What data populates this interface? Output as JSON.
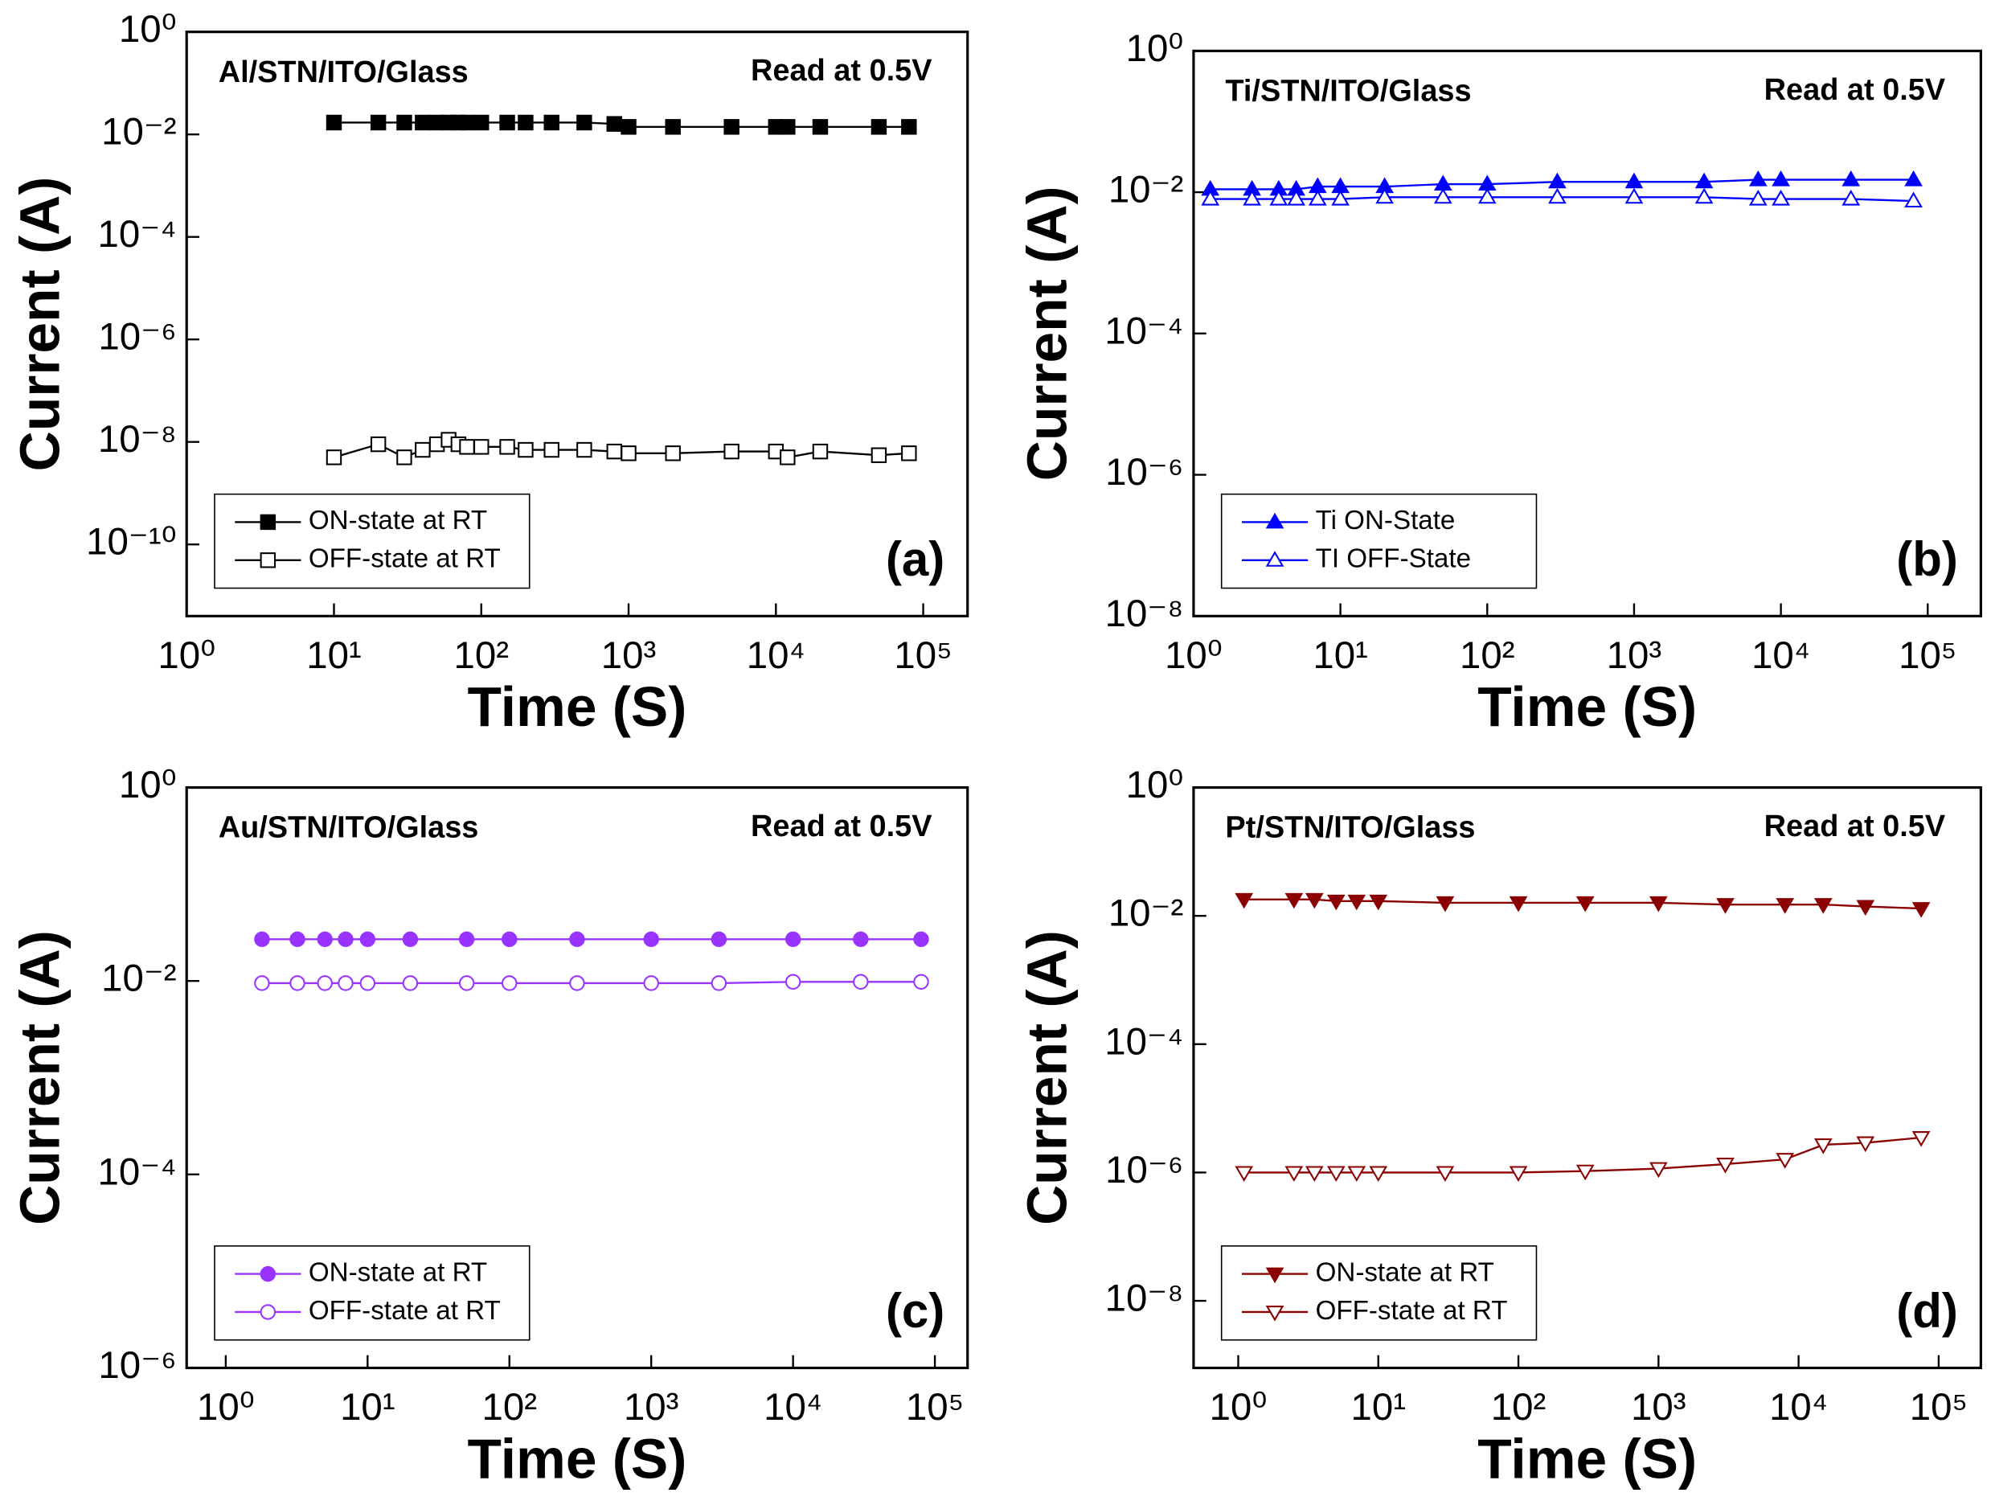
{
  "chart_data": [
    {
      "type": "line",
      "title": "Al/STN/ITO/Glass",
      "annotation": "Read at 0.5V",
      "panel_label": "(a)",
      "xlabel": "Time (S)",
      "ylabel": "Current (A)",
      "log_x": true,
      "log_y": true,
      "legend": "lower left",
      "xlim": [
        1,
        200000
      ],
      "ylim": [
        4e-12,
        1
      ],
      "xticks": [
        {
          "value": 1,
          "label": "10⁰"
        },
        {
          "value": 10,
          "label": "10¹"
        },
        {
          "value": 100,
          "label": "10²"
        },
        {
          "value": 1000,
          "label": "10³"
        },
        {
          "value": 10000,
          "label": "10⁴"
        },
        {
          "value": 100000,
          "label": "10⁵"
        }
      ],
      "yticks": [
        {
          "value": 1,
          "label": "10⁰"
        },
        {
          "value": 0.01,
          "label": "10⁻²"
        },
        {
          "value": 0.0001,
          "label": "10⁻⁴"
        },
        {
          "value": 1e-06,
          "label": "10⁻⁶"
        },
        {
          "value": 1e-08,
          "label": "10⁻⁸"
        },
        {
          "value": 1e-10,
          "label": "10⁻¹⁰"
        }
      ],
      "x": [
        10,
        20,
        30,
        40,
        50,
        60,
        70,
        80,
        100,
        150,
        200,
        300,
        500,
        800,
        1000,
        2000,
        5000,
        10000,
        12000,
        20000,
        50000,
        80000
      ],
      "series": [
        {
          "name": "ON-state at RT",
          "color": "#000000",
          "marker": "square",
          "filled": true,
          "values": [
            0.017,
            0.017,
            0.017,
            0.017,
            0.017,
            0.017,
            0.017,
            0.017,
            0.017,
            0.017,
            0.017,
            0.017,
            0.017,
            0.016,
            0.014,
            0.014,
            0.014,
            0.014,
            0.014,
            0.014,
            0.014,
            0.014
          ]
        },
        {
          "name": "OFF-state at RT",
          "color": "#000000",
          "marker": "square",
          "filled": false,
          "values": [
            5e-09,
            9e-09,
            5e-09,
            7e-09,
            9e-09,
            1.1e-08,
            9e-09,
            8e-09,
            8e-09,
            8e-09,
            7e-09,
            7e-09,
            7e-09,
            6.5e-09,
            6e-09,
            6e-09,
            6.5e-09,
            6.5e-09,
            5e-09,
            6.5e-09,
            5.5e-09,
            6e-09
          ]
        }
      ]
    },
    {
      "type": "line",
      "title": "Ti/STN/ITO/Glass",
      "annotation": "Read at 0.5V",
      "panel_label": "(b)",
      "xlabel": "Time (S)",
      "ylabel": "Current (A)",
      "log_x": true,
      "log_y": true,
      "legend": "lower left",
      "xlim": [
        1,
        230000
      ],
      "ylim": [
        1e-08,
        1
      ],
      "xticks": [
        {
          "value": 1,
          "label": "10⁰"
        },
        {
          "value": 10,
          "label": "10¹"
        },
        {
          "value": 100,
          "label": "10²"
        },
        {
          "value": 1000,
          "label": "10³"
        },
        {
          "value": 10000,
          "label": "10⁴"
        },
        {
          "value": 100000,
          "label": "10⁵"
        }
      ],
      "yticks": [
        {
          "value": 1,
          "label": "10⁰"
        },
        {
          "value": 0.01,
          "label": "10⁻²"
        },
        {
          "value": 0.0001,
          "label": "10⁻⁴"
        },
        {
          "value": 1e-06,
          "label": "10⁻⁶"
        },
        {
          "value": 1e-08,
          "label": "10⁻⁸"
        }
      ],
      "x": [
        1.3,
        2.5,
        3.8,
        5,
        7,
        10,
        20,
        50,
        100,
        300,
        1000,
        3000,
        7000,
        10000,
        30000,
        80000
      ],
      "series": [
        {
          "name": "Ti ON-State",
          "color": "#0000ff",
          "marker": "triangle-up",
          "filled": true,
          "values": [
            0.011,
            0.011,
            0.011,
            0.011,
            0.012,
            0.012,
            0.012,
            0.013,
            0.013,
            0.014,
            0.014,
            0.014,
            0.015,
            0.015,
            0.015,
            0.015
          ]
        },
        {
          "name": "TI OFF-State",
          "color": "#0000ff",
          "marker": "triangle-up",
          "filled": false,
          "values": [
            0.008,
            0.008,
            0.008,
            0.008,
            0.008,
            0.008,
            0.0085,
            0.0085,
            0.0085,
            0.0085,
            0.0085,
            0.0085,
            0.008,
            0.008,
            0.008,
            0.0075
          ]
        }
      ]
    },
    {
      "type": "line",
      "title": "Au/STN/ITO/Glass",
      "annotation": "Read at 0.5V",
      "panel_label": "(c)",
      "xlabel": "Time (S)",
      "ylabel": "Current (A)",
      "log_x": true,
      "log_y": true,
      "legend": "lower left",
      "xlim": [
        0.53,
        170000
      ],
      "ylim": [
        1e-06,
        1
      ],
      "xticks": [
        {
          "value": 1,
          "label": "10⁰"
        },
        {
          "value": 10,
          "label": "10¹"
        },
        {
          "value": 100,
          "label": "10²"
        },
        {
          "value": 1000,
          "label": "10³"
        },
        {
          "value": 10000,
          "label": "10⁴"
        },
        {
          "value": 100000,
          "label": "10⁵"
        }
      ],
      "yticks": [
        {
          "value": 1,
          "label": "10⁰"
        },
        {
          "value": 0.01,
          "label": "10⁻²"
        },
        {
          "value": 0.0001,
          "label": "10⁻⁴"
        },
        {
          "value": 1e-06,
          "label": "10⁻⁶"
        }
      ],
      "x": [
        1.8,
        3.2,
        5,
        7,
        10,
        20,
        50,
        100,
        300,
        1000,
        3000,
        10000,
        30000,
        80000
      ],
      "series": [
        {
          "name": "ON-state at RT",
          "color": "#9933ff",
          "marker": "circle",
          "filled": true,
          "values": [
            0.027,
            0.027,
            0.027,
            0.027,
            0.027,
            0.027,
            0.027,
            0.027,
            0.027,
            0.027,
            0.027,
            0.027,
            0.027,
            0.027
          ]
        },
        {
          "name": "OFF-state at RT",
          "color": "#9933ff",
          "marker": "circle",
          "filled": false,
          "values": [
            0.0095,
            0.0095,
            0.0095,
            0.0095,
            0.0095,
            0.0095,
            0.0095,
            0.0095,
            0.0095,
            0.0095,
            0.0095,
            0.0098,
            0.0098,
            0.0098
          ]
        }
      ]
    },
    {
      "type": "line",
      "title": "Pt/STN/ITO/Glass",
      "annotation": "Read at 0.5V",
      "panel_label": "(d)",
      "xlabel": "Time (S)",
      "ylabel": "Current (A)",
      "log_x": true,
      "log_y": true,
      "legend": "lower left",
      "xlim": [
        0.48,
        200000
      ],
      "ylim": [
        9e-10,
        1
      ],
      "xticks": [
        {
          "value": 1,
          "label": "10⁰"
        },
        {
          "value": 10,
          "label": "10¹"
        },
        {
          "value": 100,
          "label": "10²"
        },
        {
          "value": 1000,
          "label": "10³"
        },
        {
          "value": 10000,
          "label": "10⁴"
        },
        {
          "value": 100000,
          "label": "10⁵"
        }
      ],
      "yticks": [
        {
          "value": 1,
          "label": "10⁰"
        },
        {
          "value": 0.01,
          "label": "10⁻²"
        },
        {
          "value": 0.0001,
          "label": "10⁻⁴"
        },
        {
          "value": 1e-06,
          "label": "10⁻⁶"
        },
        {
          "value": 1e-08,
          "label": "10⁻⁸"
        }
      ],
      "x": [
        1.1,
        2.5,
        3.5,
        5,
        7,
        10,
        30,
        100,
        300,
        1000,
        3000,
        8000,
        15000,
        30000,
        75000
      ],
      "series": [
        {
          "name": "ON-state at RT",
          "color": "#8b0000",
          "marker": "triangle-down",
          "filled": true,
          "values": [
            0.018,
            0.018,
            0.018,
            0.017,
            0.017,
            0.017,
            0.016,
            0.016,
            0.016,
            0.016,
            0.015,
            0.015,
            0.015,
            0.014,
            0.013
          ]
        },
        {
          "name": "OFF-state at RT",
          "color": "#8b0000",
          "marker": "triangle-down",
          "filled": false,
          "values": [
            1e-06,
            1e-06,
            1e-06,
            1e-06,
            1e-06,
            1e-06,
            1e-06,
            1e-06,
            1.05e-06,
            1.15e-06,
            1.35e-06,
            1.6e-06,
            2.7e-06,
            2.9e-06,
            3.5e-06
          ]
        }
      ]
    }
  ]
}
